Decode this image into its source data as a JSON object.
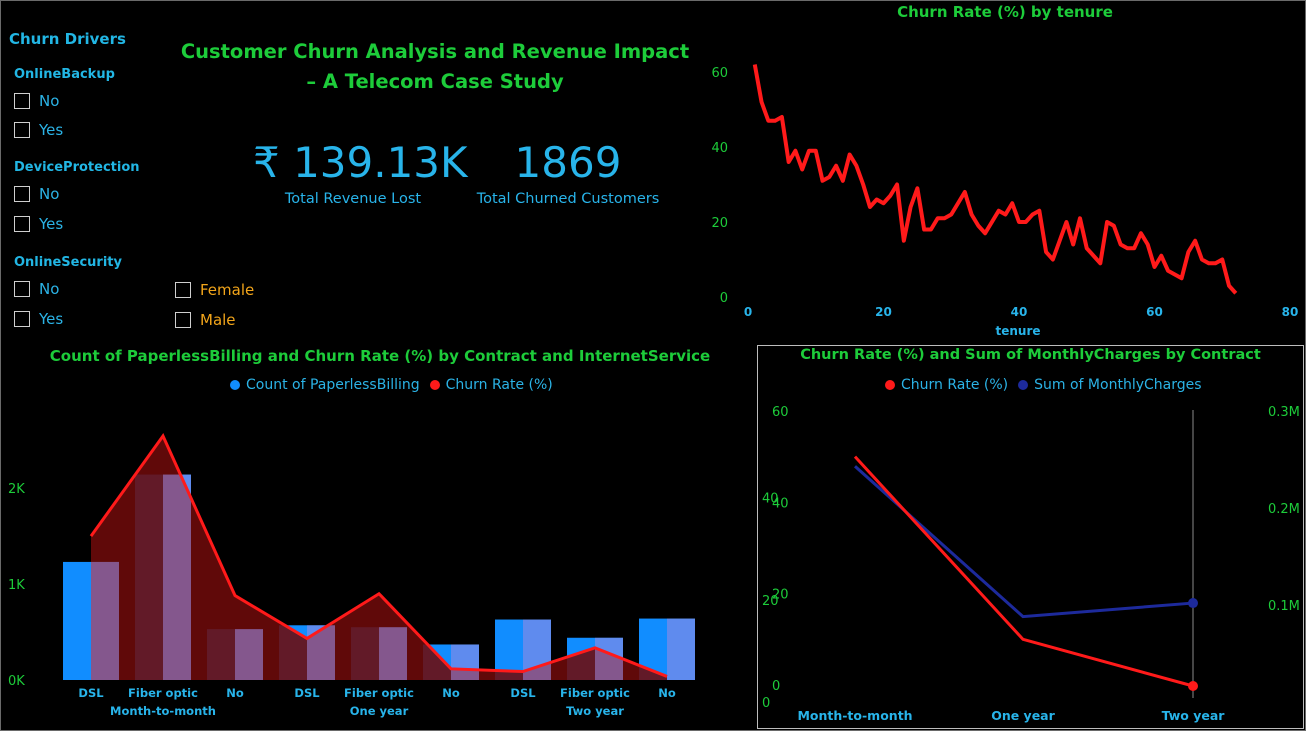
{
  "title": {
    "line1": "Customer Churn Analysis and Revenue Impact",
    "line2": "– A Telecom Case Study"
  },
  "slicers": {
    "header": "Churn Drivers",
    "groups": [
      {
        "label": "OnlineBackup",
        "options": [
          "No",
          "Yes"
        ]
      },
      {
        "label": "DeviceProtection",
        "options": [
          "No",
          "Yes"
        ]
      },
      {
        "label": "OnlineSecurity",
        "options": [
          "No",
          "Yes"
        ]
      }
    ],
    "gender": {
      "options": [
        "Female",
        "Male"
      ]
    }
  },
  "kpis": {
    "revenue_lost": {
      "value": "₹ 139.13K",
      "label": "Total Revenue Lost"
    },
    "churned_customers": {
      "value": "1869",
      "label": "Total Churned Customers"
    }
  },
  "colors": {
    "title_green": "#1dcc3a",
    "accent_blue": "#28b4ea",
    "gender_orange": "#f2a51a",
    "bar_blue": "#118dff",
    "churn_red": "#ff1a1a",
    "dark_red_fill": "#6d0a0a",
    "navy": "#1d2a9c"
  },
  "chart_data": [
    {
      "type": "line",
      "title": "Churn Rate (%) by tenure",
      "xlabel": "tenure",
      "ylabel": "",
      "xlim": [
        0,
        80
      ],
      "ylim": [
        0,
        60
      ],
      "xticks": [
        0,
        20,
        40,
        60,
        80
      ],
      "yticks": [
        0,
        20,
        40,
        60
      ],
      "series": [
        {
          "x": [
            1,
            2,
            3,
            4,
            5,
            6,
            7,
            8,
            9,
            10,
            11,
            12,
            13,
            14,
            15,
            16,
            17,
            18,
            19,
            20,
            21,
            22,
            23,
            24,
            25,
            26,
            27,
            28,
            29,
            30,
            31,
            32,
            33,
            34,
            35,
            36,
            37,
            38,
            39,
            40,
            41,
            42,
            43,
            44,
            45,
            46,
            47,
            48,
            49,
            50,
            51,
            52,
            53,
            54,
            55,
            56,
            57,
            58,
            59,
            60,
            61,
            62,
            63,
            64,
            65,
            66,
            67,
            68,
            69,
            70,
            71,
            72
          ],
          "values": [
            62,
            52,
            47,
            47,
            48,
            36,
            39,
            34,
            39,
            39,
            31,
            32,
            35,
            31,
            38,
            35,
            30,
            24,
            26,
            25,
            27,
            30,
            15,
            24,
            29,
            18,
            18,
            21,
            21,
            22,
            25,
            28,
            22,
            19,
            17,
            20,
            23,
            22,
            25,
            20,
            20,
            22,
            23,
            12,
            10,
            15,
            20,
            14,
            21,
            13,
            11,
            9,
            20,
            19,
            14,
            13,
            13,
            17,
            14,
            8,
            11,
            7,
            6,
            5,
            12,
            15,
            10,
            9,
            9,
            10,
            3,
            1
          ]
        }
      ]
    },
    {
      "type": "bar",
      "title": "Count of PaperlessBilling and Churn Rate (%) by Contract and InternetService",
      "categories": [
        "DSL",
        "Fiber optic",
        "No",
        "DSL",
        "Fiber optic",
        "No",
        "DSL",
        "Fiber optic",
        "No"
      ],
      "groups": [
        "Month-to-month",
        "One year",
        "Two year"
      ],
      "yticks": [
        "0K",
        "1K",
        "2K"
      ],
      "ylim": [
        0,
        2500
      ],
      "series": [
        {
          "name": "Count of PaperlessBilling",
          "values": [
            1230,
            2140,
            530,
            570,
            550,
            370,
            630,
            440,
            640
          ]
        },
        {
          "name": "Churn Rate (%)",
          "values": [
            32.2,
            54.6,
            18.9,
            9.3,
            19.3,
            2.5,
            1.9,
            7.2,
            0.8
          ]
        }
      ]
    },
    {
      "type": "line",
      "title": "Churn Rate (%) and Sum of MonthlyCharges by Contract",
      "categories": [
        "Month-to-month",
        "One year",
        "Two year"
      ],
      "ylim": [
        0,
        60
      ],
      "y2lim": [
        0,
        0.3
      ],
      "yticks": [
        0,
        20,
        40,
        60
      ],
      "y2ticks": [
        "0.1M",
        "0.2M",
        "0.3M"
      ],
      "series": [
        {
          "name": "Churn Rate (%)",
          "values": [
            50,
            10,
            0
          ]
        },
        {
          "name": "Sum of MonthlyCharges",
          "values": [
            0.243,
            0.088,
            0.102
          ]
        }
      ]
    }
  ]
}
